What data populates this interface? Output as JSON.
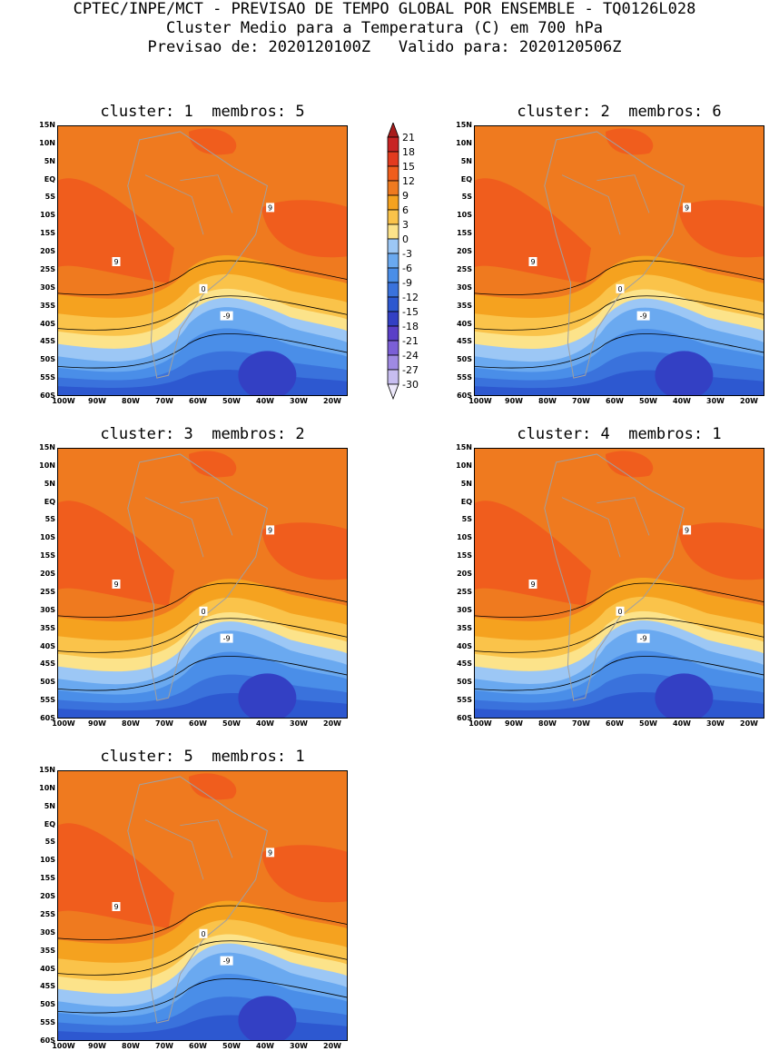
{
  "header": {
    "line1": "CPTEC/INPE/MCT - PREVISAO DE TEMPO GLOBAL POR ENSEMBLE - TQ0126L028",
    "line2": "Cluster Medio para a Temperatura (C) em 700 hPa",
    "line3": "Previsao de: 2020120100Z   Valido para: 2020120506Z"
  },
  "clusters": [
    {
      "title": "cluster: 1  membros: 5"
    },
    {
      "title": "cluster: 2  membros: 6"
    },
    {
      "title": "cluster: 3  membros: 2"
    },
    {
      "title": "cluster: 4  membros: 1"
    },
    {
      "title": "cluster: 5  membros: 1"
    }
  ],
  "axes": {
    "lat_labels": [
      "15N",
      "10N",
      "5N",
      "EQ",
      "5S",
      "10S",
      "15S",
      "20S",
      "25S",
      "30S",
      "35S",
      "40S",
      "45S",
      "50S",
      "55S",
      "60S"
    ],
    "lon_labels": [
      "100W",
      "90W",
      "80W",
      "70W",
      "60W",
      "50W",
      "40W",
      "30W",
      "20W"
    ]
  },
  "colorbar": {
    "labels": [
      "21",
      "18",
      "15",
      "12",
      "9",
      "6",
      "3",
      "0",
      "-3",
      "-6",
      "-9",
      "-12",
      "-15",
      "-18",
      "-21",
      "-24",
      "-27",
      "-30"
    ],
    "colors": [
      "#a81c1c",
      "#c82424",
      "#e33b1f",
      "#f05d1d",
      "#ef7a1f",
      "#f5a21f",
      "#fac34a",
      "#fce38a",
      "#9cc7f5",
      "#6aa9f0",
      "#4a8ee8",
      "#3a72dc",
      "#2d58d0",
      "#3340c4",
      "#5a3fc7",
      "#7b5fd6",
      "#9f8ae3",
      "#c7bdf0",
      "#ece8fa"
    ]
  },
  "contour_labels": {
    "nine": "9",
    "zero": "0",
    "minus_nine": "-9"
  }
}
